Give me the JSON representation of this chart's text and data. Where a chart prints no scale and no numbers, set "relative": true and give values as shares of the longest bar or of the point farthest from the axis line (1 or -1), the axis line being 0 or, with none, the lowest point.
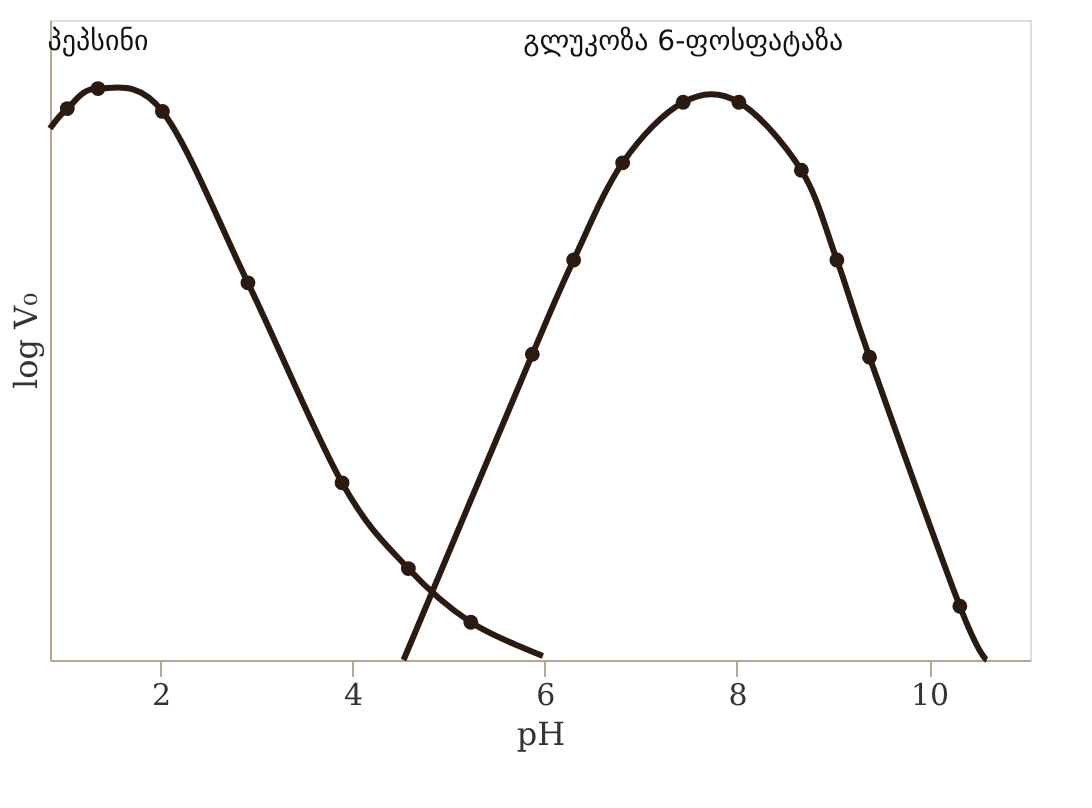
{
  "chart_data": {
    "type": "line",
    "relative": true,
    "xlabel": "pH",
    "ylabel": "log V₀",
    "xlim": [
      0.85,
      11.05
    ],
    "xticks": [
      2,
      4,
      6,
      8,
      10
    ],
    "grid": false,
    "marker": "circle",
    "line_style": "solid",
    "series": [
      {
        "name": "პეპსინი",
        "color": "#2a1a10",
        "x": [
          0.85,
          1.03,
          1.35,
          2.02,
          2.91,
          3.89,
          4.58,
          5.23,
          5.98
        ],
        "values": [
          0.93,
          0.965,
          1.0,
          0.96,
          0.66,
          0.31,
          0.16,
          0.066,
          0.007
        ]
      },
      {
        "name": "გლუკოზა 6-ფოსფატაზა",
        "color": "#2a1a10",
        "x": [
          4.53,
          5.87,
          6.3,
          6.81,
          7.44,
          8.02,
          8.67,
          9.04,
          9.38,
          10.32,
          10.6
        ],
        "values": [
          0.0,
          0.535,
          0.7,
          0.87,
          0.976,
          0.976,
          0.857,
          0.7,
          0.53,
          0.094,
          0.0
        ]
      }
    ]
  }
}
